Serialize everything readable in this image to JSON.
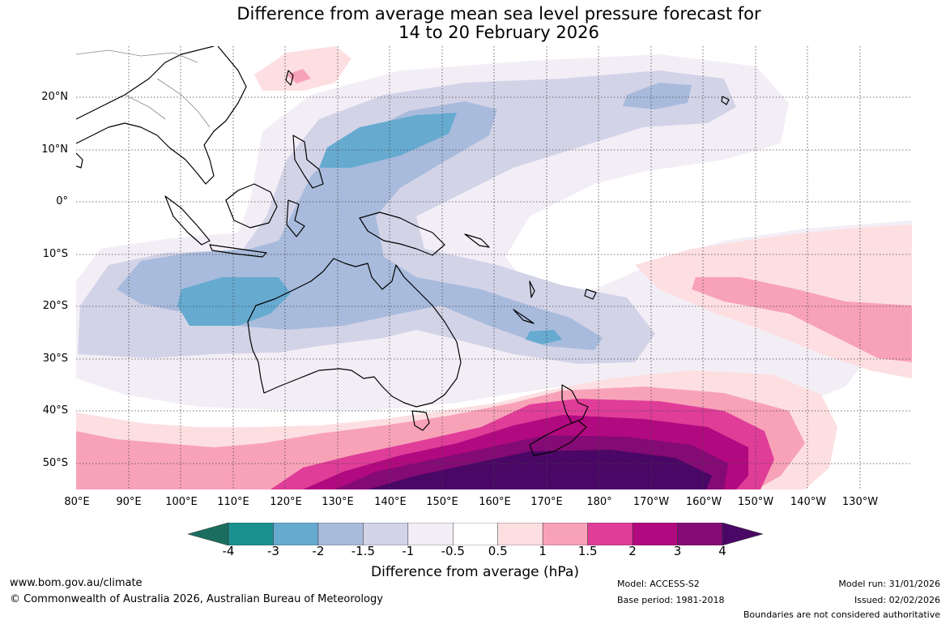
{
  "title": {
    "line1": "Difference from average mean sea level pressure forecast for",
    "line2": "14 to 20 February 2026"
  },
  "axes": {
    "lat_labels": [
      "20°N",
      "10°N",
      "0°",
      "10°S",
      "20°S",
      "30°S",
      "40°S",
      "50°S"
    ],
    "lon_labels": [
      "80°E",
      "90°E",
      "100°E",
      "110°E",
      "120°E",
      "130°E",
      "140°E",
      "150°E",
      "160°E",
      "170°E",
      "180°",
      "170°W",
      "160°W",
      "150°W",
      "140°W",
      "130°W"
    ]
  },
  "colorbar": {
    "title": "Difference from average (hPa)",
    "ticks": [
      "-4",
      "-3",
      "-2",
      "-1.5",
      "-1",
      "-0.5",
      "0.5",
      "1",
      "1.5",
      "2",
      "3",
      "4"
    ],
    "colors": [
      "#1a6e60",
      "#1a9190",
      "#66aad0",
      "#a8bbdc",
      "#d3d3e8",
      "#f3eef6",
      "#ffffff",
      "#fddfe1",
      "#f8a2b8",
      "#df3d98",
      "#b1097f",
      "#840a75",
      "#4a0765"
    ]
  },
  "footer": {
    "website": "www.bom.gov.au/climate",
    "copyright": "© Commonwealth of Australia 2026, Australian Bureau of Meteorology",
    "model": "Model: ACCESS-S2",
    "base_period": "Base period: 1981-2018",
    "model_run": "Model run: 31/01/2026",
    "issued": "Issued: 02/02/2026",
    "disclaimer": "Boundaries are not considered authoritative"
  }
}
